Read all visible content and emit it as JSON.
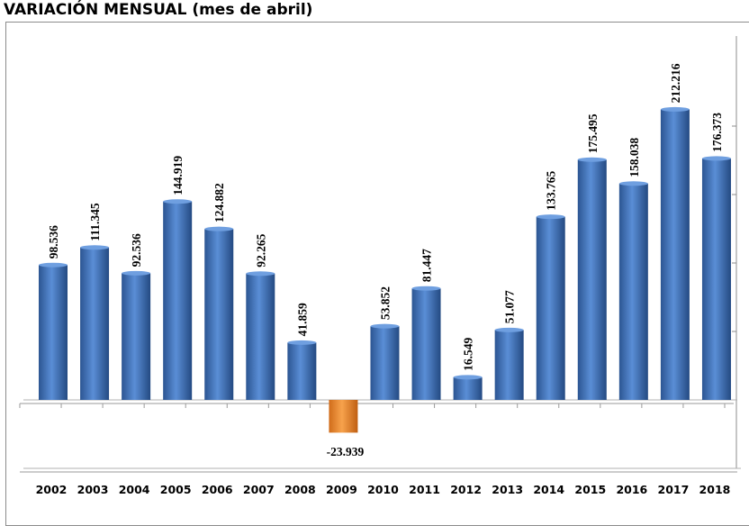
{
  "title": "VARIACIÓN MENSUAL (mes de abril)",
  "chart_data": {
    "type": "bar",
    "title": "VARIACIÓN MENSUAL (mes de abril)",
    "xlabel": "",
    "ylabel": "",
    "categories": [
      "2002",
      "2003",
      "2004",
      "2005",
      "2006",
      "2007",
      "2008",
      "2009",
      "2010",
      "2011",
      "2012",
      "2013",
      "2014",
      "2015",
      "2016",
      "2017",
      "2018"
    ],
    "values": [
      98536,
      111345,
      92536,
      144919,
      124882,
      92265,
      41859,
      -23939,
      53852,
      81447,
      16549,
      51077,
      133765,
      175495,
      158038,
      212216,
      176373
    ],
    "value_labels": [
      "98.536",
      "111.345",
      "92.536",
      "144.919",
      "124.882",
      "92.265",
      "41.859",
      "-23.939",
      "53.852",
      "81.447",
      "16.549",
      "51.077",
      "133.765",
      "175.495",
      "158.038",
      "212.216",
      "176.373"
    ],
    "ylim": [
      -50000,
      240000
    ],
    "grid": false,
    "legend": "none",
    "colors": {
      "positive": "#3f6fb5",
      "negative": "#f08a2c",
      "axis": "#8c8c8c"
    }
  }
}
